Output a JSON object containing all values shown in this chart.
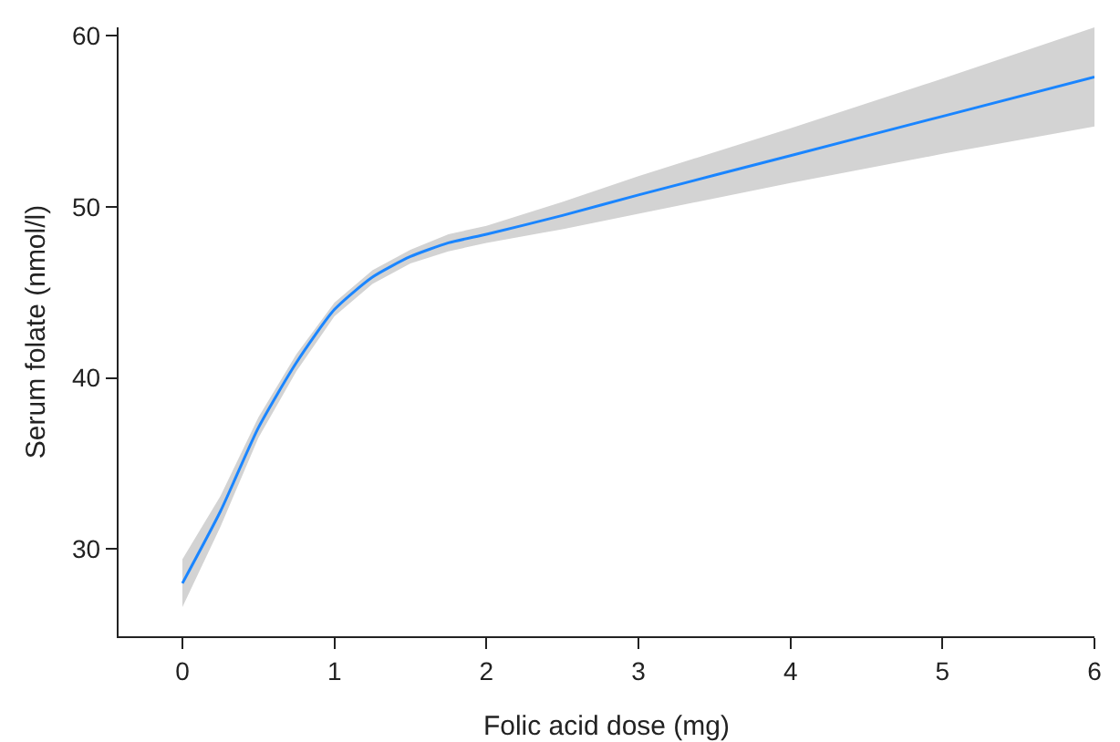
{
  "chart_data": {
    "type": "line",
    "xlabel": "Folic acid dose (mg)",
    "ylabel": "Serum folate (nmol/l)",
    "x": [
      0,
      0.25,
      0.5,
      0.75,
      1,
      1.25,
      1.5,
      1.75,
      2,
      2.5,
      3,
      4,
      5,
      6
    ],
    "series": [
      {
        "color": "#1a85ff",
        "values": [
          28.0,
          32.2,
          37.1,
          40.9,
          44.0,
          45.9,
          47.1,
          47.9,
          48.4,
          49.5,
          50.7,
          53.0,
          55.3,
          57.6
        ],
        "lower": [
          26.6,
          31.3,
          36.5,
          40.4,
          43.6,
          45.5,
          46.7,
          47.4,
          47.9,
          48.7,
          49.6,
          51.4,
          53.1,
          54.7
        ],
        "upper": [
          29.4,
          33.1,
          37.7,
          41.4,
          44.4,
          46.3,
          47.5,
          48.4,
          48.9,
          50.3,
          51.8,
          54.6,
          57.5,
          60.5
        ]
      }
    ],
    "xlim": [
      -0.42,
      6
    ],
    "xticks": [
      0,
      1,
      2,
      3,
      4,
      5,
      6
    ],
    "ylim": [
      24.9,
      60.5
    ],
    "yticks": [
      30,
      40,
      50,
      60
    ],
    "grid": false,
    "marker": "none",
    "line_style": "solid"
  }
}
